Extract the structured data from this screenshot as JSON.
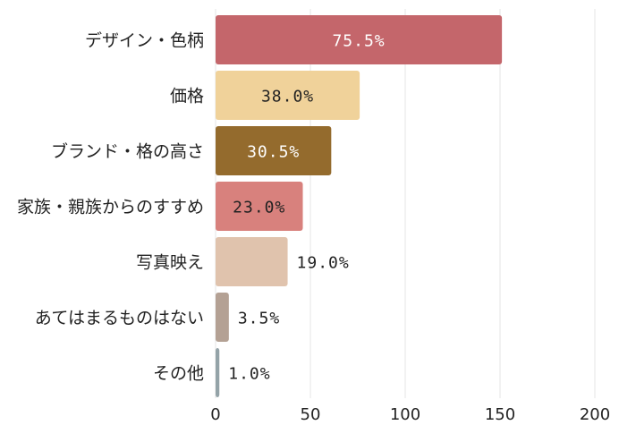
{
  "chart_data": {
    "type": "bar",
    "orientation": "horizontal",
    "categories": [
      "デザイン・色柄",
      "価格",
      "ブランド・格の高さ",
      "家族・親族からのすすめ",
      "写真映え",
      "あてはまるものはない",
      "その他"
    ],
    "values": [
      151,
      76,
      61,
      46,
      38,
      7,
      2
    ],
    "labels": [
      "75.5%",
      "38.0%",
      "30.5%",
      "23.0%",
      "19.0%",
      "3.5%",
      "1.0%"
    ],
    "colors": [
      "#c4666b",
      "#f0d29a",
      "#946b2d",
      "#d8817d",
      "#e0c3ad",
      "#b4a194",
      "#94a3a8"
    ],
    "label_colors": [
      "#ffffff",
      "#222222",
      "#ffffff",
      "#222222",
      "#222222",
      "#222222",
      "#222222"
    ],
    "label_inside": [
      true,
      true,
      true,
      true,
      false,
      false,
      false
    ],
    "xlim": [
      0,
      200
    ],
    "xticks": [
      0,
      50,
      100,
      150,
      200
    ],
    "title": "",
    "xlabel": "",
    "ylabel": "",
    "grid": true,
    "legend": "none"
  }
}
